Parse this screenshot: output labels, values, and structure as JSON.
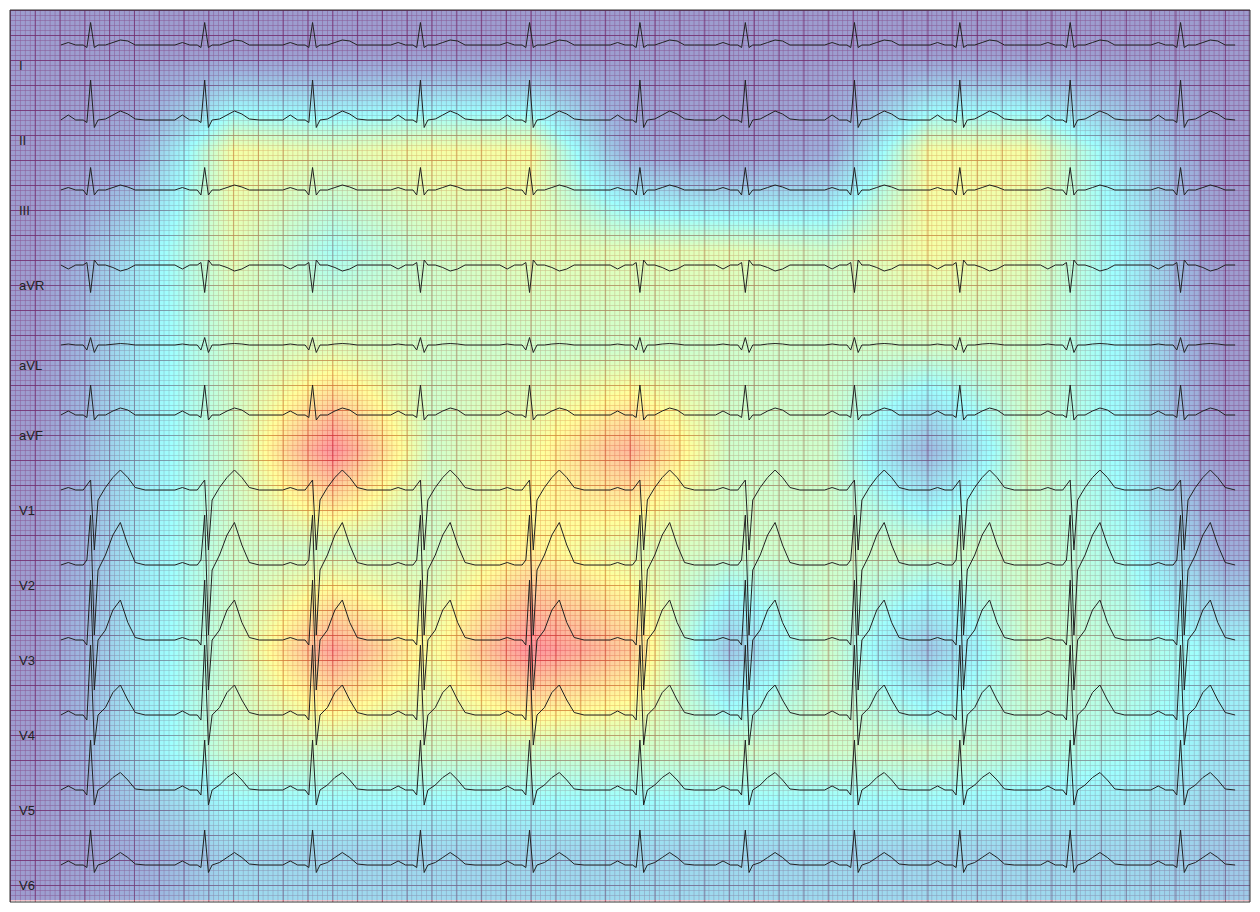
{
  "chart_data": {
    "type": "ecg",
    "grid": true,
    "tick_labels": false,
    "color": "#222222",
    "xlim": [
      0,
      10
    ],
    "ylim": [
      -17.84,
      0
    ],
    "beat_times": [
      0.65,
      1.57,
      2.44,
      3.31,
      4.19,
      5.08,
      5.93,
      6.81,
      7.66,
      8.55,
      9.44
    ],
    "beat_offsets": [
      -0.24,
      -0.18,
      -0.12,
      -0.06,
      -0.03,
      0,
      0.03,
      0.06,
      0.12,
      0.18,
      0.24,
      0.3,
      0.36,
      0.44
    ],
    "leads": [
      {
        "name": "I",
        "ylim": [
          -17.14,
          0.7
        ],
        "values": [
          0,
          0.05,
          0,
          0,
          -0.05,
          0.45,
          -0.05,
          0,
          0,
          0.05,
          0.1,
          0.08,
          0,
          0
        ]
      },
      {
        "name": "II",
        "ylim": [
          -15.64,
          2.2
        ],
        "values": [
          0,
          0.1,
          0,
          0,
          -0.05,
          0.8,
          -0.15,
          0,
          0.02,
          0.1,
          0.18,
          0.12,
          0.02,
          0
        ]
      },
      {
        "name": "III",
        "ylim": [
          -14.24,
          3.6
        ],
        "values": [
          0,
          0.05,
          0,
          0,
          -0.1,
          0.45,
          -0.1,
          0,
          0,
          0.05,
          0.1,
          0.06,
          0,
          0
        ]
      },
      {
        "name": "aVR",
        "ylim": [
          -12.74,
          5.1
        ],
        "values": [
          0,
          -0.08,
          0,
          0,
          0.05,
          -0.55,
          0.1,
          0,
          0,
          -0.05,
          -0.12,
          -0.08,
          0,
          0
        ]
      },
      {
        "name": "aVL",
        "ylim": [
          -11.14,
          6.7
        ],
        "values": [
          0,
          0.02,
          0,
          0,
          -0.1,
          0.15,
          -0.15,
          0,
          0,
          0.02,
          0.03,
          0.02,
          0,
          0
        ]
      },
      {
        "name": "aVF",
        "ylim": [
          -9.74,
          8.1
        ],
        "values": [
          0,
          0.08,
          0,
          0,
          -0.05,
          0.6,
          -0.1,
          0,
          0,
          0.08,
          0.14,
          0.1,
          0,
          0
        ]
      },
      {
        "name": "V1",
        "ylim": [
          -8.24,
          9.6
        ],
        "values": [
          0,
          0.05,
          0,
          0,
          0.1,
          0.2,
          -1.2,
          -0.2,
          0.05,
          0.25,
          0.4,
          0.25,
          0.05,
          0
        ]
      },
      {
        "name": "V2",
        "ylim": [
          -6.74,
          11.1
        ],
        "values": [
          0,
          0.05,
          0,
          0,
          0.1,
          1.0,
          -1.4,
          -0.1,
          0.2,
          0.6,
          0.85,
          0.4,
          0.05,
          0
        ]
      },
      {
        "name": "V3",
        "ylim": [
          -5.24,
          12.6
        ],
        "values": [
          0,
          0.05,
          0,
          0,
          -0.1,
          1.2,
          -1.0,
          0,
          0.2,
          0.6,
          0.8,
          0.35,
          0.05,
          0
        ]
      },
      {
        "name": "V4",
        "ylim": [
          -3.74,
          14.1
        ],
        "values": [
          0,
          0.08,
          0,
          0,
          -0.1,
          1.4,
          -0.6,
          0,
          0.15,
          0.45,
          0.6,
          0.3,
          0.05,
          0
        ]
      },
      {
        "name": "V5",
        "ylim": [
          -2.24,
          15.6
        ],
        "values": [
          0,
          0.08,
          0,
          0,
          -0.1,
          1.0,
          -0.3,
          0,
          0.1,
          0.25,
          0.35,
          0.2,
          0.02,
          0
        ]
      },
      {
        "name": "V6",
        "ylim": [
          -0.74,
          17.1
        ],
        "values": [
          0,
          0.08,
          0,
          0,
          -0.05,
          0.7,
          -0.15,
          0,
          0.05,
          0.15,
          0.25,
          0.15,
          0.02,
          0
        ]
      }
    ],
    "heatmap": {
      "x": [
        0.2,
        1.0,
        1.8,
        2.6,
        3.4,
        4.2,
        5.0,
        5.8,
        6.6,
        7.4,
        8.2,
        9.0,
        9.8
      ],
      "y": [
        -16.8,
        -14.8,
        -12.8,
        -10.8,
        -8.8,
        -6.8,
        -4.8,
        -2.8,
        -0.8
      ],
      "zlim": [
        0,
        1
      ],
      "z": [
        [
          0,
          0.1,
          0.25,
          0.25,
          0.25,
          0.25,
          0.25,
          0.25,
          0.25,
          0.25,
          0.25,
          0.25,
          0.2
        ],
        [
          0,
          0.3,
          0.5,
          0.5,
          0.5,
          0.5,
          0.5,
          0.5,
          0.5,
          0.5,
          0.45,
          0.4,
          0.3
        ],
        [
          0,
          0.3,
          0.5,
          0.85,
          0.6,
          0.9,
          0.75,
          0.2,
          0.5,
          0.2,
          0.5,
          0.45,
          0.35
        ],
        [
          0,
          0.3,
          0.5,
          0.5,
          0.5,
          0.65,
          0.55,
          0.5,
          0.5,
          0.5,
          0.5,
          0.4,
          0.1
        ],
        [
          0,
          0.3,
          0.5,
          0.9,
          0.5,
          0.6,
          0.8,
          0.5,
          0.5,
          0.15,
          0.5,
          0.35,
          0
        ],
        [
          0,
          0.3,
          0.5,
          0.55,
          0.5,
          0.5,
          0.5,
          0.5,
          0.5,
          0.5,
          0.5,
          0.35,
          0
        ],
        [
          0,
          0.3,
          0.55,
          0.4,
          0.5,
          0.55,
          0.55,
          0.55,
          0.5,
          0.6,
          0.55,
          0.35,
          0
        ],
        [
          0,
          0.1,
          0.6,
          0.55,
          0.6,
          0.6,
          0.1,
          0,
          0.1,
          0.6,
          0.6,
          0.3,
          0
        ],
        [
          0,
          0,
          0,
          0,
          0,
          0,
          0,
          0,
          0,
          0,
          0,
          0,
          0
        ]
      ]
    }
  }
}
